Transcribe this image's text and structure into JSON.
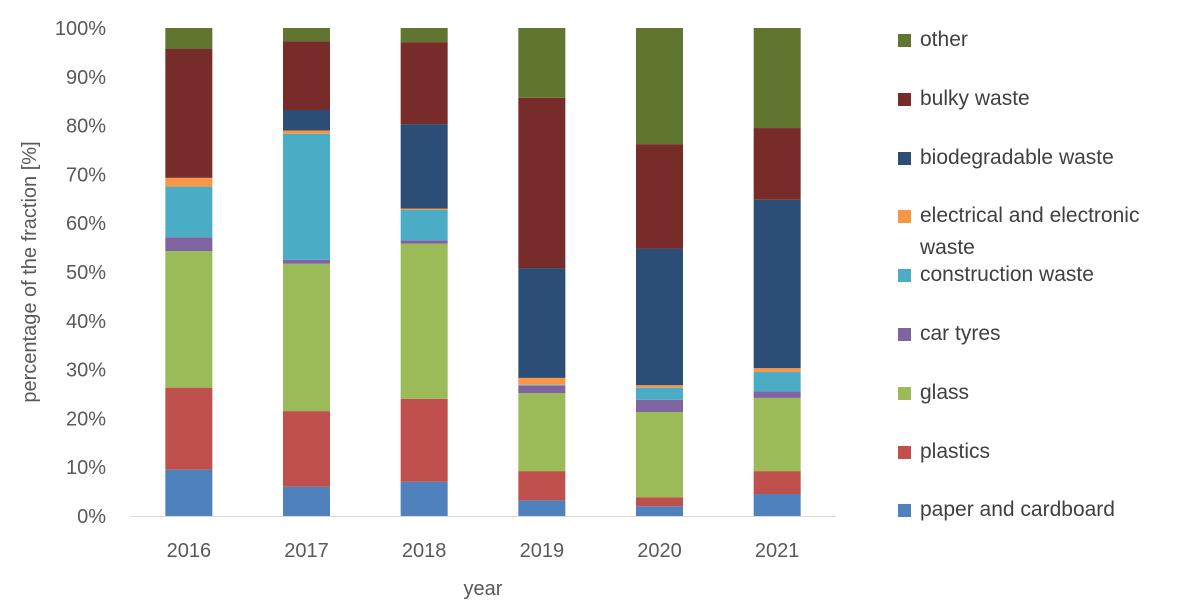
{
  "chart_data": {
    "type": "bar",
    "stacked": true,
    "percent": true,
    "categories": [
      "2016",
      "2017",
      "2018",
      "2019",
      "2020",
      "2021"
    ],
    "xlabel": "year",
    "ylabel": "percentage of the fraction [%]",
    "ylim": [
      0,
      100
    ],
    "y_ticks": [
      "0%",
      "10%",
      "20%",
      "30%",
      "40%",
      "50%",
      "60%",
      "70%",
      "80%",
      "90%",
      "100%"
    ],
    "legend_position": "right",
    "series": [
      {
        "name": "paper and cardboard",
        "color": "#4F81BD",
        "values": [
          9.5,
          6.0,
          7.0,
          3.2,
          2.0,
          4.5
        ]
      },
      {
        "name": "plastics",
        "color": "#C0504D",
        "values": [
          16.8,
          15.5,
          17.0,
          6.0,
          1.8,
          4.7
        ]
      },
      {
        "name": "glass",
        "color": "#9BBB59",
        "values": [
          28.0,
          30.2,
          31.8,
          16.0,
          17.5,
          15.0
        ]
      },
      {
        "name": "car tyres",
        "color": "#8064A2",
        "values": [
          2.8,
          0.8,
          0.7,
          1.5,
          2.5,
          1.3
        ]
      },
      {
        "name": "construction waste",
        "color": "#4BACC6",
        "values": [
          10.4,
          25.8,
          6.2,
          0.2,
          2.5,
          4.0
        ]
      },
      {
        "name": "electrical and electronic waste",
        "color": "#F79646",
        "values": [
          1.8,
          0.7,
          0.3,
          1.4,
          0.5,
          0.8
        ]
      },
      {
        "name": "biodegradable waste",
        "color": "#2C4D75",
        "values": [
          0.0,
          4.2,
          17.3,
          22.5,
          28.0,
          34.5
        ]
      },
      {
        "name": "bulky waste",
        "color": "#772C2A",
        "values": [
          26.4,
          14.1,
          16.8,
          34.9,
          21.4,
          14.7
        ]
      },
      {
        "name": "other",
        "color": "#5F7530",
        "values": [
          4.3,
          2.7,
          2.9,
          14.3,
          23.8,
          20.5
        ]
      }
    ]
  }
}
